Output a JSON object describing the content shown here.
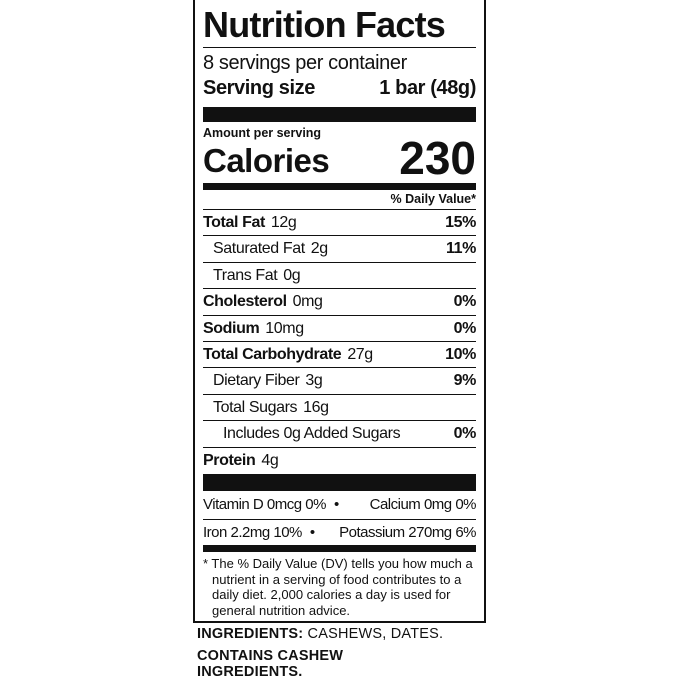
{
  "title": "Nutrition Facts",
  "servings_per_container": "8 servings per container",
  "serving_size": {
    "label": "Serving size",
    "value": "1 bar (48g)"
  },
  "amount_per_serving": "Amount per serving",
  "calories": {
    "label": "Calories",
    "value": "230"
  },
  "dv_header": "% Daily Value*",
  "nutrients": [
    {
      "name": "Total Fat",
      "amount": "12g",
      "dv": "15%",
      "bold": true,
      "indent": 0
    },
    {
      "name": "Saturated Fat",
      "amount": "2g",
      "dv": "11%",
      "bold": false,
      "indent": 1
    },
    {
      "name": "Trans Fat",
      "amount": "0g",
      "dv": "",
      "bold": false,
      "indent": 1
    },
    {
      "name": "Cholesterol",
      "amount": "0mg",
      "dv": "0%",
      "bold": true,
      "indent": 0
    },
    {
      "name": "Sodium",
      "amount": "10mg",
      "dv": "0%",
      "bold": true,
      "indent": 0
    },
    {
      "name": "Total Carbohydrate",
      "amount": "27g",
      "dv": "10%",
      "bold": true,
      "indent": 0
    },
    {
      "name": "Dietary Fiber",
      "amount": "3g",
      "dv": "9%",
      "bold": false,
      "indent": 1
    },
    {
      "name": "Total Sugars",
      "amount": "16g",
      "dv": "",
      "bold": false,
      "indent": 1
    },
    {
      "name": "Includes 0g Added Sugars",
      "amount": "",
      "dv": "0%",
      "bold": false,
      "indent": 2
    },
    {
      "name": "Protein",
      "amount": "4g",
      "dv": "",
      "bold": true,
      "indent": 0
    }
  ],
  "vitamins": [
    {
      "left": "Vitamin D  0mcg  0%",
      "right": "Calcium  0mg  0%"
    },
    {
      "left": "Iron  2.2mg  10%",
      "right": "Potassium  270mg  6%"
    }
  ],
  "bullet": "•",
  "footnote": "* The % Daily Value (DV) tells you how much a nutrient in a serving of food contributes to a daily diet. 2,000 calories a day is used for general nutrition advice.",
  "ingredients": {
    "label": "INGREDIENTS:",
    "text": " CASHEWS, DATES."
  },
  "contains": "CONTAINS CASHEW INGREDIENTS."
}
